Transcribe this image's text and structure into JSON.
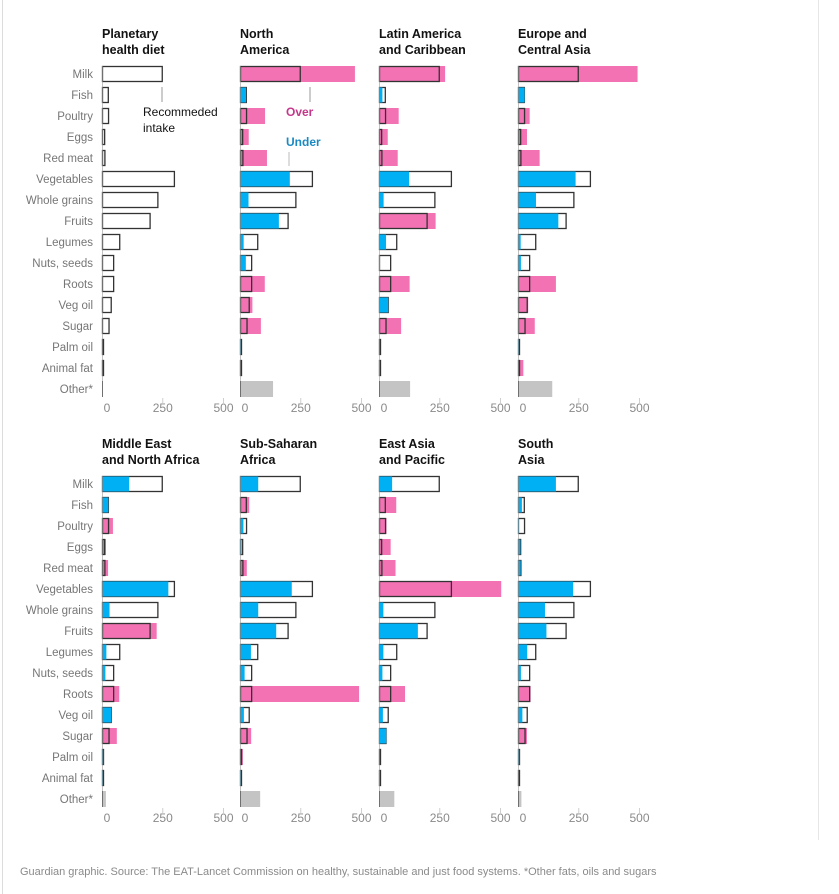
{
  "colors": {
    "over": "#f372b4",
    "under": "#00b0f5",
    "outline": "#333333",
    "other": "#c4c4c4",
    "over_text": "#c4388a",
    "under_text": "#1b8ac2"
  },
  "annotations": {
    "recommended": [
      "Recommeded",
      "intake"
    ],
    "over": "Over",
    "under": "Under"
  },
  "footer": "Guardian graphic. Source: The EAT-Lancet Commission on healthy, sustainable and just food systems. *Other fats, oils and sugars",
  "chart_data": {
    "type": "bar",
    "orientation": "horizontal",
    "categories": [
      "Milk",
      "Fish",
      "Poultry",
      "Eggs",
      "Red meat",
      "Vegetables",
      "Whole grains",
      "Fruits",
      "Legumes",
      "Nuts, seeds",
      "Roots",
      "Veg oil",
      "Sugar",
      "Palm oil",
      "Animal fat",
      "Other*"
    ],
    "xlim": [
      0,
      500
    ],
    "xticks": [
      "0",
      "250",
      "500"
    ],
    "grid": false,
    "recommended": [
      250,
      28,
      29,
      13,
      14,
      300,
      232,
      200,
      75,
      50,
      50,
      40,
      31,
      7,
      5,
      0
    ],
    "panels": [
      {
        "title": [
          "Planetary",
          "health diet"
        ],
        "values": null
      },
      {
        "title": [
          "North",
          "America"
        ],
        "values": [
          473,
          25,
          103,
          36,
          111,
          205,
          35,
          160,
          15,
          24,
          102,
          51,
          86,
          2,
          7,
          136
        ]
      },
      {
        "title": [
          "Latin America",
          "and Caribbean"
        ],
        "values": [
          272,
          14,
          81,
          36,
          77,
          124,
          19,
          233,
          29,
          2,
          126,
          38,
          91,
          8,
          2,
          128
        ]
      },
      {
        "title": [
          "Europe and",
          "Central Asia"
        ],
        "values": [
          492,
          27,
          48,
          37,
          89,
          237,
          74,
          166,
          11,
          12,
          156,
          42,
          69,
          3,
          22,
          141
        ]
      },
      {
        "title": [
          "Middle East",
          "and North Africa"
        ],
        "values": [
          112,
          26,
          45,
          16,
          25,
          273,
          31,
          225,
          18,
          14,
          71,
          38,
          61,
          5,
          3,
          16
        ]
      },
      {
        "title": [
          "Sub-Saharan",
          "Africa"
        ],
        "values": [
          75,
          38,
          14,
          7,
          28,
          213,
          75,
          149,
          45,
          19,
          490,
          16,
          46,
          12,
          2,
          83
        ]
      },
      {
        "title": [
          "East Asia",
          "and Pacific"
        ],
        "values": [
          54,
          71,
          31,
          48,
          68,
          503,
          18,
          160,
          18,
          14,
          107,
          16,
          30,
          8,
          2,
          63
        ]
      },
      {
        "title": [
          "South",
          "Asia"
        ],
        "values": [
          156,
          16,
          2,
          10,
          11,
          227,
          111,
          117,
          38,
          12,
          52,
          18,
          37,
          5,
          5,
          14
        ]
      }
    ]
  }
}
